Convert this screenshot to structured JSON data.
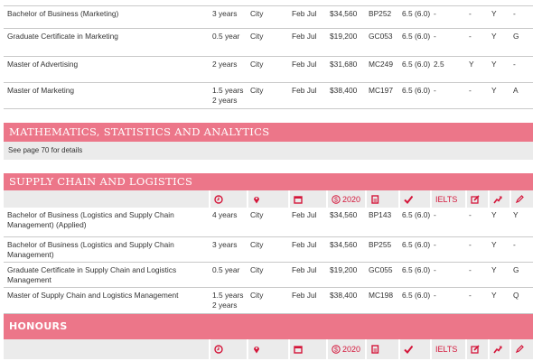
{
  "marketing_rows": [
    {
      "name": "Bachelor of Business (Marketing)",
      "duration": "3 years",
      "location": "City",
      "intake": "Feb Jul",
      "fee": "$34,560",
      "code": "BP252",
      "ielts": "6.5 (6.0)",
      "c7": "-",
      "c8": "-",
      "c9": "Y",
      "c10": "-"
    },
    {
      "name": "Graduate Certificate in Marketing",
      "duration": "0.5 year",
      "location": "City",
      "intake": "Feb Jul",
      "fee": "$19,200",
      "code": "GC053",
      "ielts": "6.5 (6.0)",
      "c7": "-",
      "c8": "-",
      "c9": "Y",
      "c10": "G"
    },
    {
      "name": "Master of Advertising",
      "duration": "2 years",
      "location": "City",
      "intake": "Feb Jul",
      "fee": "$31,680",
      "code": "MC249",
      "ielts": "6.5 (6.0)",
      "c7": "2.5",
      "c8": "Y",
      "c9": "Y",
      "c10": "-"
    },
    {
      "name": "Master of Marketing",
      "duration": "1.5 years 2 years",
      "location": "City",
      "intake": "Feb Jul",
      "fee": "$38,400",
      "code": "MC197",
      "ielts": "6.5 (6.0)",
      "c7": "-",
      "c8": "-",
      "c9": "Y",
      "c10": "A"
    }
  ],
  "math": {
    "title": "MATHEMATICS, STATISTICS AND ANALYTICS",
    "note": "See page 70 for details"
  },
  "supply": {
    "title": "SUPPLY CHAIN AND LOGISTICS",
    "rows": [
      {
        "name": "Bachelor of Business (Logistics and Supply Chain Management) (Applied)",
        "duration": "4 years",
        "location": "City",
        "intake": "Feb Jul",
        "fee": "$34,560",
        "code": "BP143",
        "ielts": "6.5 (6.0)",
        "c7": "-",
        "c8": "-",
        "c9": "Y",
        "c10": "Y"
      },
      {
        "name": "Bachelor of Business (Logistics and Supply Chain Management)",
        "duration": "3 years",
        "location": "City",
        "intake": "Feb Jul",
        "fee": "$34,560",
        "code": "BP255",
        "ielts": "6.5 (6.0)",
        "c7": "-",
        "c8": "-",
        "c9": "Y",
        "c10": "-"
      },
      {
        "name": "Graduate Certificate in Supply Chain and Logistics Management",
        "duration": "0.5 year",
        "location": "City",
        "intake": "Feb Jul",
        "fee": "$19,200",
        "code": "GC055",
        "ielts": "6.5 (6.0)",
        "c7": "-",
        "c8": "-",
        "c9": "Y",
        "c10": "G"
      },
      {
        "name": "Master of Supply Chain and Logistics Management",
        "duration": "1.5 years 2 years",
        "location": "City",
        "intake": "Feb Jul",
        "fee": "$38,400",
        "code": "MC198",
        "ielts": "6.5 (6.0)",
        "c7": "-",
        "c8": "-",
        "c9": "Y",
        "c10": "Q"
      }
    ]
  },
  "honours": {
    "title": "HONOURS"
  },
  "header": {
    "fee_year": "2020",
    "ielts": "IELTS",
    "icons": [
      "clock-icon",
      "location-pin-icon",
      "calendar-icon",
      "dollar-icon",
      "document-icon",
      "check-icon",
      "edit-icon",
      "trend-icon",
      "pencil-icon"
    ]
  },
  "colors": {
    "section": "#ec7689",
    "icon": "#d4163a",
    "header_bg": "#ebebeb"
  }
}
